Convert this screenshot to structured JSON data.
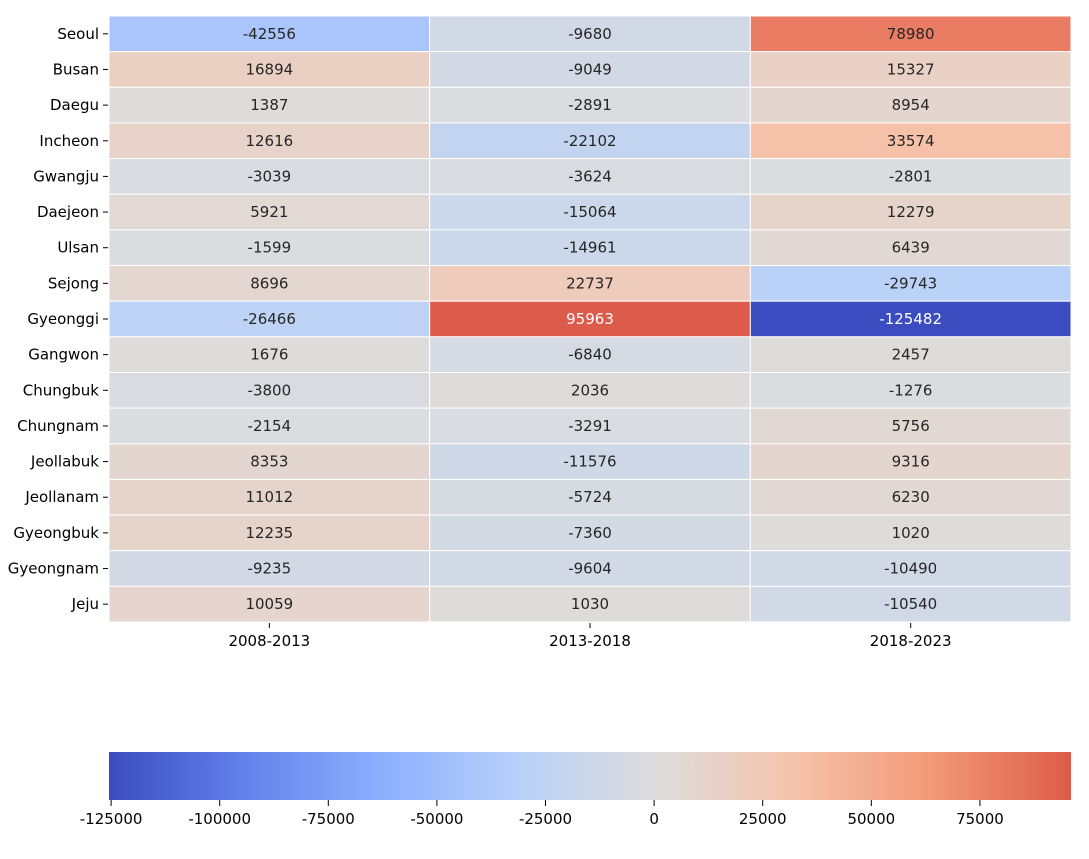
{
  "chart_data": {
    "type": "heatmap",
    "title": "",
    "xlabel": "",
    "ylabel": "",
    "x_categories": [
      "2008-2013",
      "2013-2018",
      "2018-2023"
    ],
    "y_categories": [
      "Seoul",
      "Busan",
      "Daegu",
      "Incheon",
      "Gwangju",
      "Daejeon",
      "Ulsan",
      "Sejong",
      "Gyeonggi",
      "Gangwon",
      "Chungbuk",
      "Chungnam",
      "Jeollabuk",
      "Jeollanam",
      "Gyeongbuk",
      "Gyeongnam",
      "Jeju"
    ],
    "values": [
      [
        -42556,
        -9680,
        78980
      ],
      [
        16894,
        -9049,
        15327
      ],
      [
        1387,
        -2891,
        8954
      ],
      [
        12616,
        -22102,
        33574
      ],
      [
        -3039,
        -3624,
        -2801
      ],
      [
        5921,
        -15064,
        12279
      ],
      [
        -1599,
        -14961,
        6439
      ],
      [
        8696,
        22737,
        -29743
      ],
      [
        -26466,
        95963,
        -125482
      ],
      [
        1676,
        -6840,
        2457
      ],
      [
        -3800,
        2036,
        -1276
      ],
      [
        -2154,
        -3291,
        5756
      ],
      [
        8353,
        -11576,
        9316
      ],
      [
        11012,
        -5724,
        6230
      ],
      [
        12235,
        -7360,
        1020
      ],
      [
        -9235,
        -9604,
        -10490
      ],
      [
        10059,
        1030,
        -10540
      ]
    ],
    "colormap": "coolwarm",
    "center": 0,
    "vmin": -125482,
    "vmax": 95963,
    "colorbar": {
      "orientation": "horizontal",
      "position": "bottom",
      "ticks": [
        -125000,
        -100000,
        -75000,
        -50000,
        -25000,
        0,
        25000,
        50000,
        75000
      ]
    },
    "gridlines": "white cell borders"
  }
}
